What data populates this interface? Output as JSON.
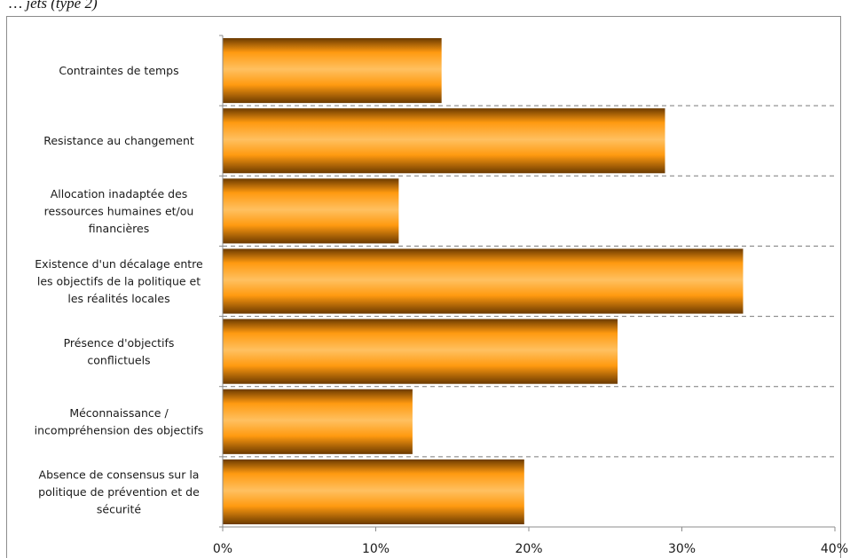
{
  "caption": "… jets (type 2)",
  "chart_data": {
    "type": "bar",
    "orientation": "horizontal",
    "categories": [
      [
        "Contraintes de temps"
      ],
      [
        "Resistance au changement"
      ],
      [
        "Allocation inadaptée des",
        "ressources humaines et/ou",
        "financières"
      ],
      [
        "Existence d'un décalage entre",
        "les objectifs de la politique et",
        "les réalités locales"
      ],
      [
        "Présence d'objectifs",
        "conflictuels"
      ],
      [
        "Méconnaissance /",
        "incompréhension des objectifs"
      ],
      [
        "Absence de consensus sur la",
        "politique de prévention et de",
        "sécurité"
      ]
    ],
    "values": [
      14.3,
      28.9,
      11.5,
      34.0,
      25.8,
      12.4,
      19.7
    ],
    "xlim": [
      0,
      40
    ],
    "xticks": [
      "0%",
      "10%",
      "20%",
      "30%",
      "40%"
    ],
    "grid": "dashed horizontal separators",
    "bar_colors": {
      "edge": "#6b3a00",
      "mid": "#ff9a10",
      "light": "#ffc060"
    }
  }
}
